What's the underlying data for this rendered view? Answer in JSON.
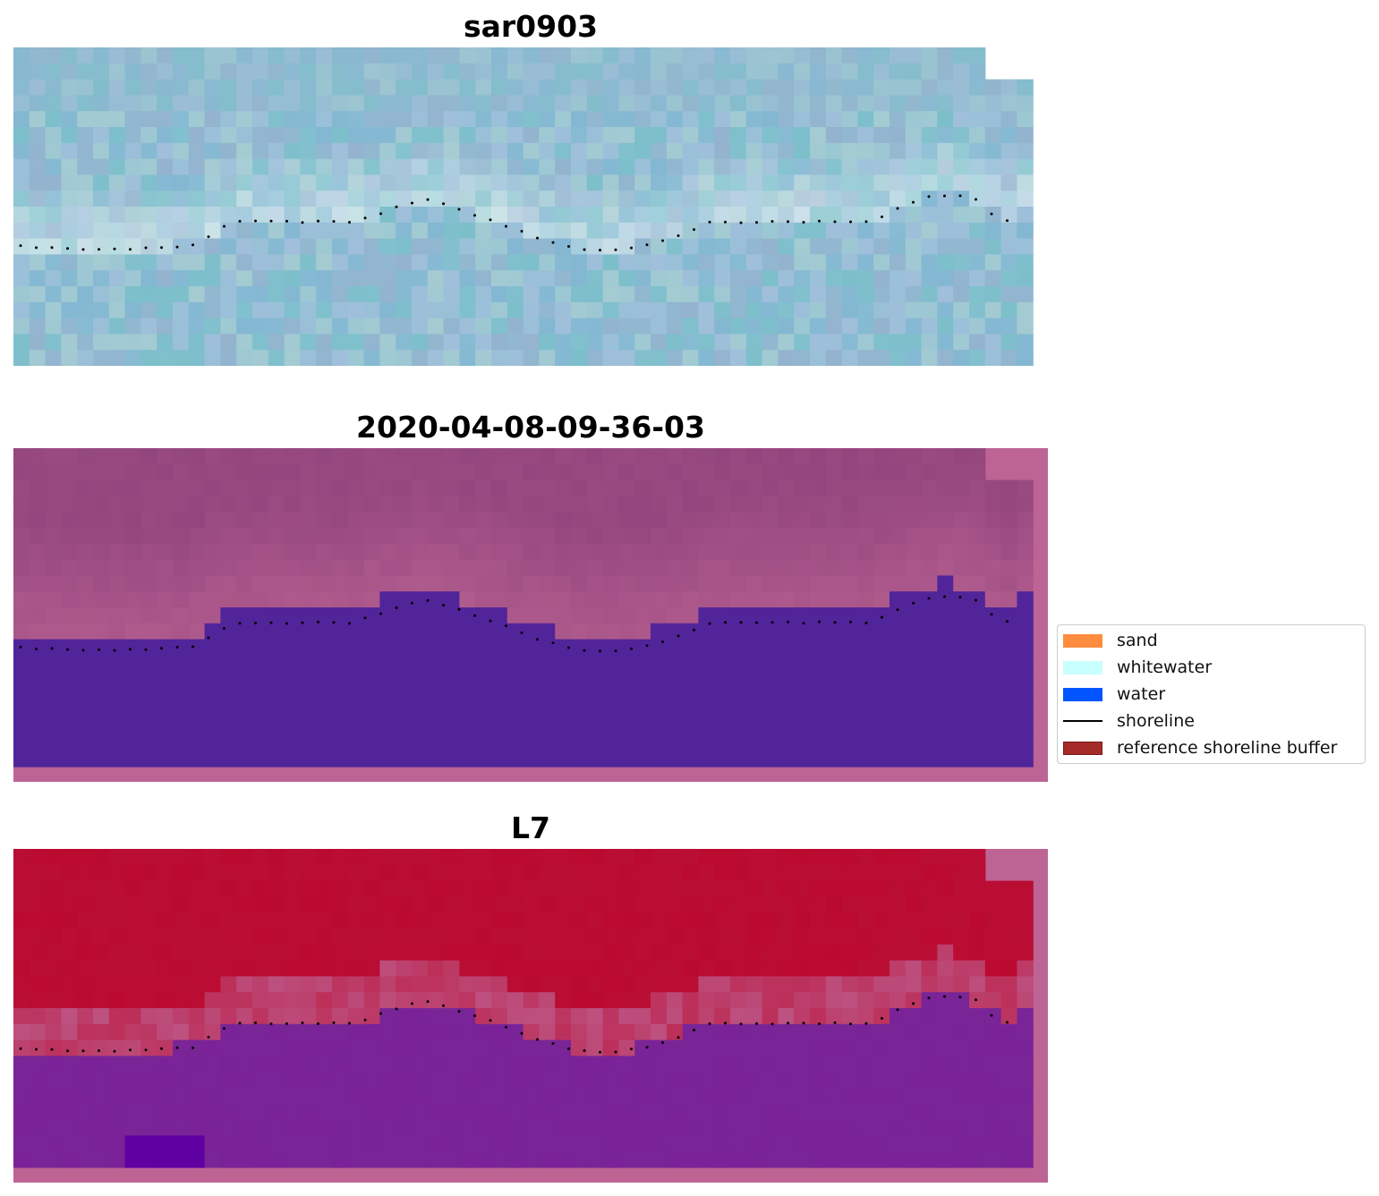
{
  "panels": [
    {
      "id": "sar",
      "title": "sar0903"
    },
    {
      "id": "class",
      "title": "2020-04-08-09-36-03"
    },
    {
      "id": "l7",
      "title": "L7"
    }
  ],
  "legend": {
    "items": [
      {
        "label": "sand",
        "color": "#ff8c3e",
        "kind": "patch"
      },
      {
        "label": "whitewater",
        "color": "#c8ffff",
        "kind": "patch"
      },
      {
        "label": "water",
        "color": "#0055ff",
        "kind": "patch"
      },
      {
        "label": "shoreline",
        "color": "#000000",
        "kind": "line"
      },
      {
        "label": "reference shoreline buffer",
        "color": "#a52a2a",
        "kind": "patch"
      }
    ]
  },
  "colors": {
    "sar_water": "#8cc2d4",
    "sar_whitewater": "#e8f4f4",
    "class_background": "#93467d",
    "class_water": "#51249a",
    "buffer_overlay": "#bd6495",
    "l7_land": "#bb0a30",
    "l7_water": "#7a2298",
    "shoreline": "#000000"
  }
}
